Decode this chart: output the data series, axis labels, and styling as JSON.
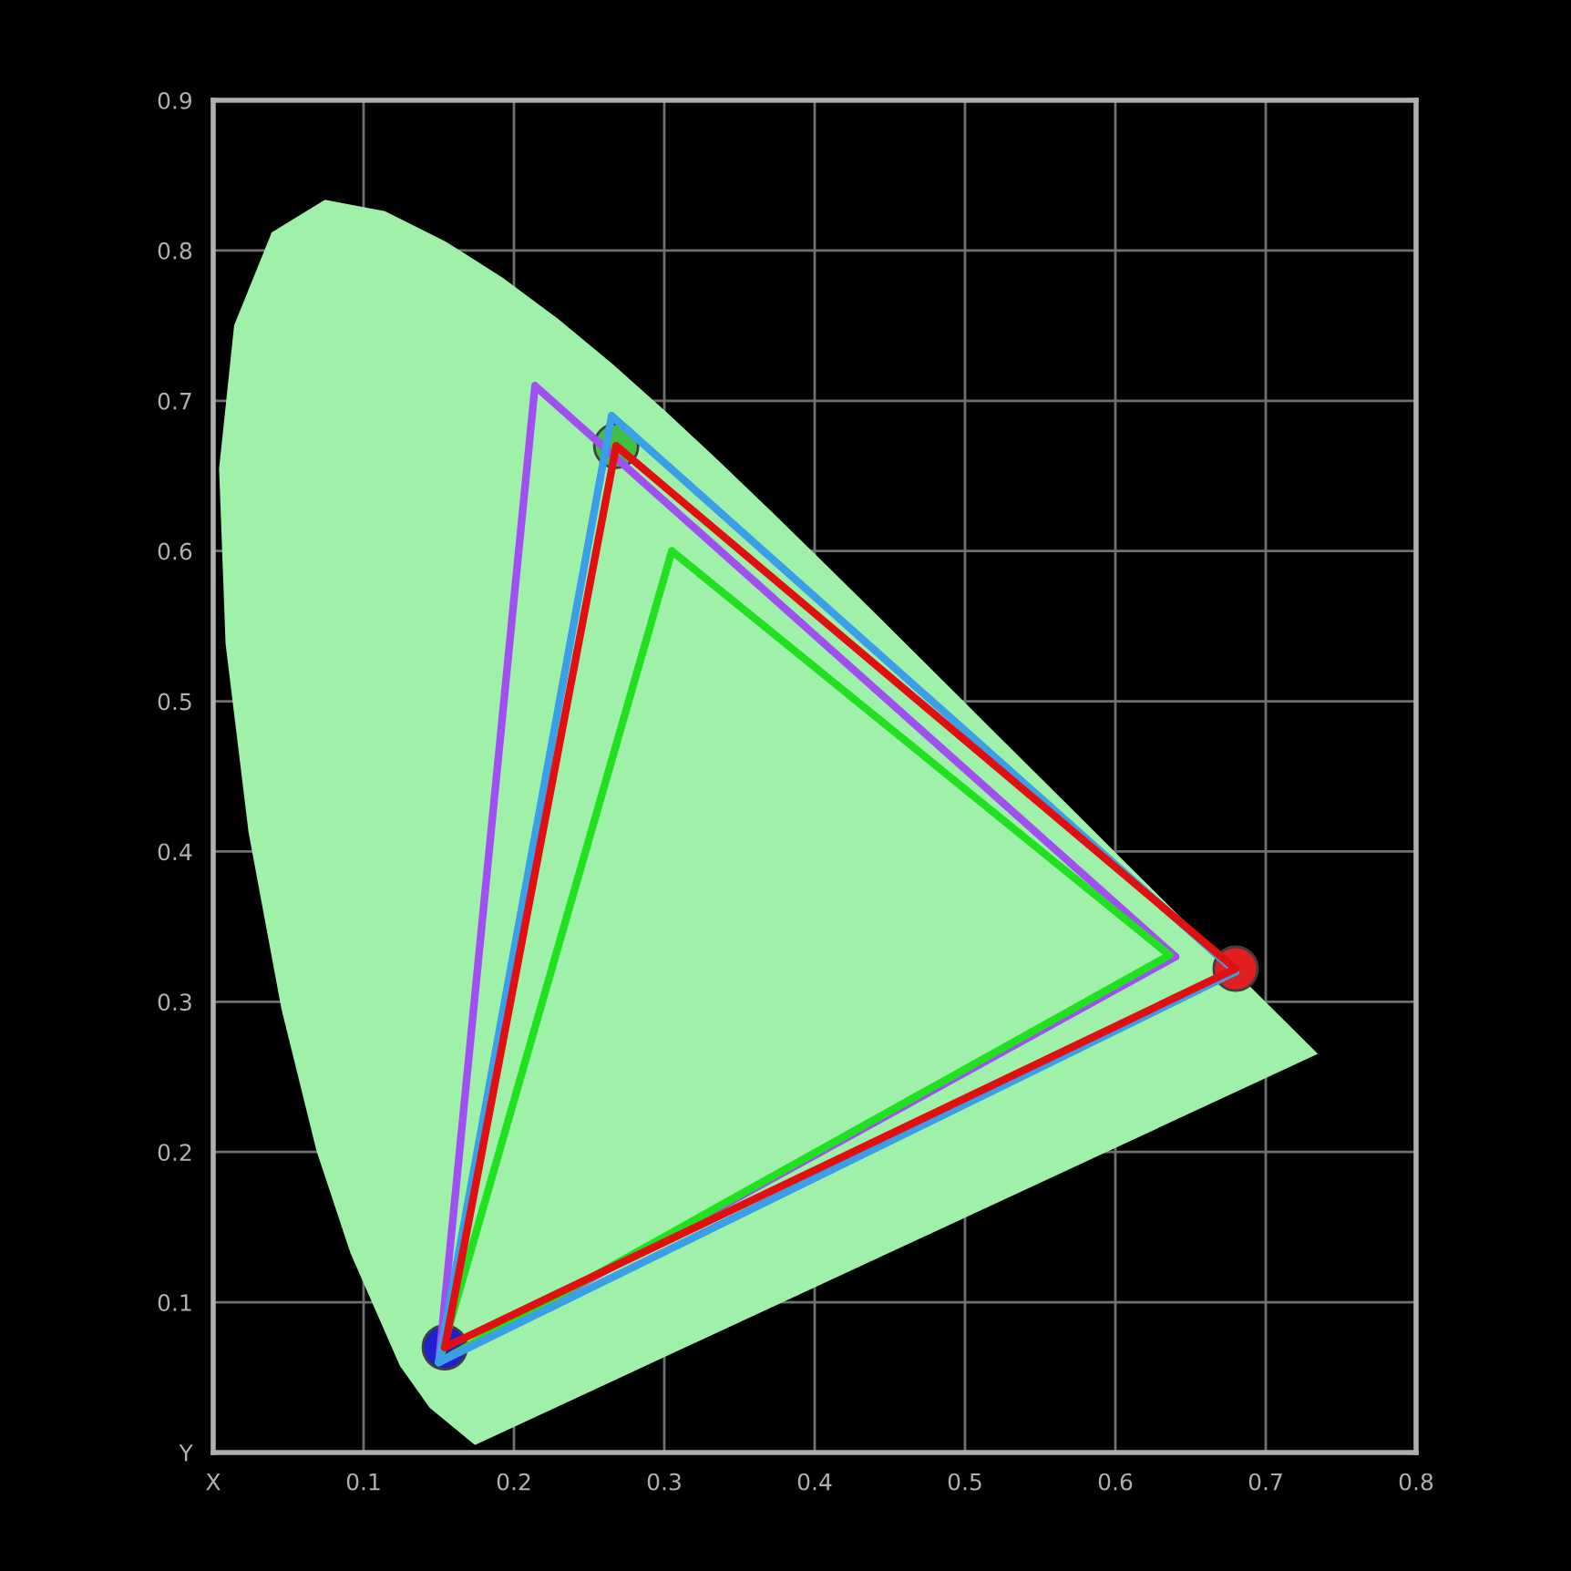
{
  "chart_data": {
    "type": "line",
    "xlim": [
      0,
      0.8
    ],
    "ylim": [
      0,
      0.9
    ],
    "xticks": [
      {
        "value": 0,
        "label": "X"
      },
      0.1,
      0.2,
      0.3,
      0.4,
      0.5,
      0.6,
      0.7,
      0.8
    ],
    "yticks": [
      {
        "value": 0,
        "label": "Y"
      },
      0.1,
      0.2,
      0.3,
      0.4,
      0.5,
      0.6,
      0.7,
      0.8,
      0.9
    ],
    "grid": true,
    "legend": false,
    "series": [
      {
        "type": "area",
        "color": "#9ff0a8",
        "x": [
          0.1741,
          0.144,
          0.1241,
          0.0913,
          0.0687,
          0.0454,
          0.0235,
          0.0082,
          0.0039,
          0.0139,
          0.0389,
          0.0743,
          0.1142,
          0.1547,
          0.1929,
          0.2296,
          0.2658,
          0.3016,
          0.3373,
          0.3731,
          0.4087,
          0.4441,
          0.4788,
          0.5125,
          0.5448,
          0.5752,
          0.6029,
          0.627,
          0.6482,
          0.6658,
          0.6915,
          0.7347,
          0.1741
        ],
        "values": [
          0.005,
          0.0297,
          0.0578,
          0.1327,
          0.2007,
          0.295,
          0.4127,
          0.5384,
          0.6548,
          0.7502,
          0.812,
          0.8338,
          0.8262,
          0.8059,
          0.7816,
          0.7543,
          0.7243,
          0.6923,
          0.6589,
          0.6245,
          0.5896,
          0.5547,
          0.5202,
          0.4866,
          0.4544,
          0.4242,
          0.3965,
          0.3725,
          0.3514,
          0.334,
          0.3083,
          0.2653,
          0.005
        ]
      },
      {
        "color": "#a050f0",
        "x": [
          0.15,
          0.214
        ],
        "values": [
          0.06,
          0.71
        ]
      },
      {
        "color": "#a050f0",
        "x": [
          0.214,
          0.64
        ],
        "values": [
          0.71,
          0.33
        ]
      },
      {
        "color": "#a050f0",
        "x": [
          0.15,
          0.64
        ],
        "values": [
          0.06,
          0.33
        ]
      },
      {
        "color": "#20e020",
        "x": [
          0.15,
          0.305
        ],
        "values": [
          0.06,
          0.6
        ]
      },
      {
        "color": "#20e020",
        "x": [
          0.305,
          0.636
        ],
        "values": [
          0.6,
          0.331
        ]
      },
      {
        "color": "#20e020",
        "x": [
          0.15,
          0.636
        ],
        "values": [
          0.06,
          0.331
        ]
      },
      {
        "color": "#3a9ee8",
        "x": [
          0.15,
          0.265
        ],
        "values": [
          0.06,
          0.69
        ]
      },
      {
        "color": "#3a9ee8",
        "x": [
          0.265,
          0.68
        ],
        "values": [
          0.69,
          0.32
        ]
      },
      {
        "color": "#3a9ee8",
        "x": [
          0.15,
          0.68
        ],
        "values": [
          0.06,
          0.32
        ]
      },
      {
        "color": "#e01010",
        "x": [
          0.154,
          0.268
        ],
        "values": [
          0.07,
          0.67
        ]
      },
      {
        "color": "#e01010",
        "x": [
          0.268,
          0.68
        ],
        "values": [
          0.67,
          0.322
        ]
      },
      {
        "color": "#e01010",
        "x": [
          0.154,
          0.68
        ],
        "values": [
          0.07,
          0.322
        ]
      },
      {
        "type": "scatter",
        "marker": "circle",
        "colors": [
          "#e02020",
          "#40c040",
          "#2020d0"
        ],
        "x": [
          0.68,
          0.268,
          0.154
        ],
        "values": [
          0.322,
          0.67,
          0.07
        ]
      }
    ]
  }
}
